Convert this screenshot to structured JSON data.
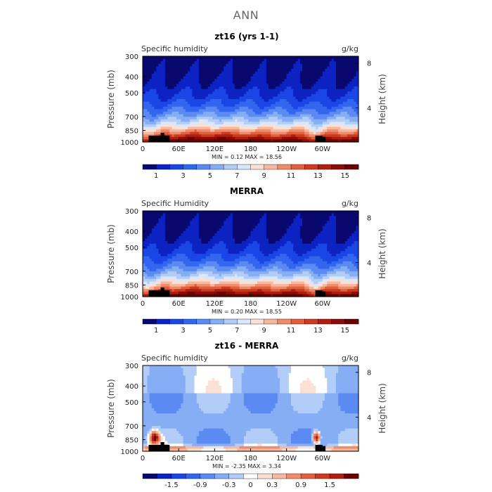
{
  "page_title": "ANN",
  "chart_data": [
    {
      "type": "heatmap",
      "title": "zt16 (yrs 1-1)",
      "subtitle_left": "Specific humidity",
      "units": "g/kg",
      "ylabel": "Pressure (mb)",
      "ylabel_right": "Height (km)",
      "x_ticks": [
        "0",
        "60E",
        "120E",
        "180",
        "120W",
        "60W"
      ],
      "y_ticks": [
        "300",
        "400",
        "500",
        "700",
        "850",
        "1000"
      ],
      "y_right_ticks": [
        "8",
        "4"
      ],
      "stats": "MIN =    0.12   MAX =   18.56",
      "colorbar_labels": [
        "1",
        "3",
        "5",
        "7",
        "9",
        "11",
        "13",
        "15"
      ],
      "colorbar_colors": [
        "#08086e",
        "#0c22c2",
        "#1a46e6",
        "#3366ee",
        "#5a8af2",
        "#86aef4",
        "#b2cdf7",
        "#d9e6fb",
        "#fbe1d4",
        "#f6b9a0",
        "#ef8c6c",
        "#e0603f",
        "#cc3b20",
        "#ad1f10",
        "#8a0c08",
        "#650303"
      ],
      "field": "humidity"
    },
    {
      "type": "heatmap",
      "title": "MERRA",
      "subtitle_left": "Specific Humidity",
      "units": "g/kg",
      "ylabel": "Pressure (mb)",
      "ylabel_right": "Height (km)",
      "x_ticks": [
        "0",
        "60E",
        "120E",
        "180",
        "120W",
        "60W"
      ],
      "y_ticks": [
        "300",
        "400",
        "500",
        "700",
        "850",
        "1000"
      ],
      "y_right_ticks": [
        "8",
        "4"
      ],
      "stats": "MIN =    0.20   MAX =   18.55",
      "colorbar_labels": [
        "1",
        "3",
        "5",
        "7",
        "9",
        "11",
        "13",
        "15"
      ],
      "colorbar_colors": [
        "#08086e",
        "#0c22c2",
        "#1a46e6",
        "#3366ee",
        "#5a8af2",
        "#86aef4",
        "#b2cdf7",
        "#d9e6fb",
        "#fbe1d4",
        "#f6b9a0",
        "#ef8c6c",
        "#e0603f",
        "#cc3b20",
        "#ad1f10",
        "#8a0c08",
        "#650303"
      ],
      "field": "humidity"
    },
    {
      "type": "heatmap",
      "title": "zt16 - MERRA",
      "subtitle_left": "Specific humidity",
      "units": "g/kg",
      "ylabel": "Pressure (mb)",
      "ylabel_right": "Height (km)",
      "x_ticks": [
        "0",
        "60E",
        "120E",
        "180",
        "120W",
        "60W"
      ],
      "y_ticks": [
        "300",
        "400",
        "500",
        "700",
        "850",
        "1000"
      ],
      "y_right_ticks": [
        "8",
        "4"
      ],
      "stats": "MIN =   -2.35   MAX =    3.34",
      "colorbar_labels": [
        "-1.5",
        "-0.9",
        "-0.3",
        "0",
        "0.3",
        "0.9",
        "1.5"
      ],
      "colorbar_colors": [
        "#08086e",
        "#0c22c2",
        "#1a46e6",
        "#3366ee",
        "#5a8af2",
        "#86aef4",
        "#b2cdf7",
        "#ffffff",
        "#fbe1d4",
        "#f6b9a0",
        "#ef8c6c",
        "#e0603f",
        "#cc3b20",
        "#ad1f10",
        "#650303"
      ],
      "field": "difference"
    }
  ]
}
